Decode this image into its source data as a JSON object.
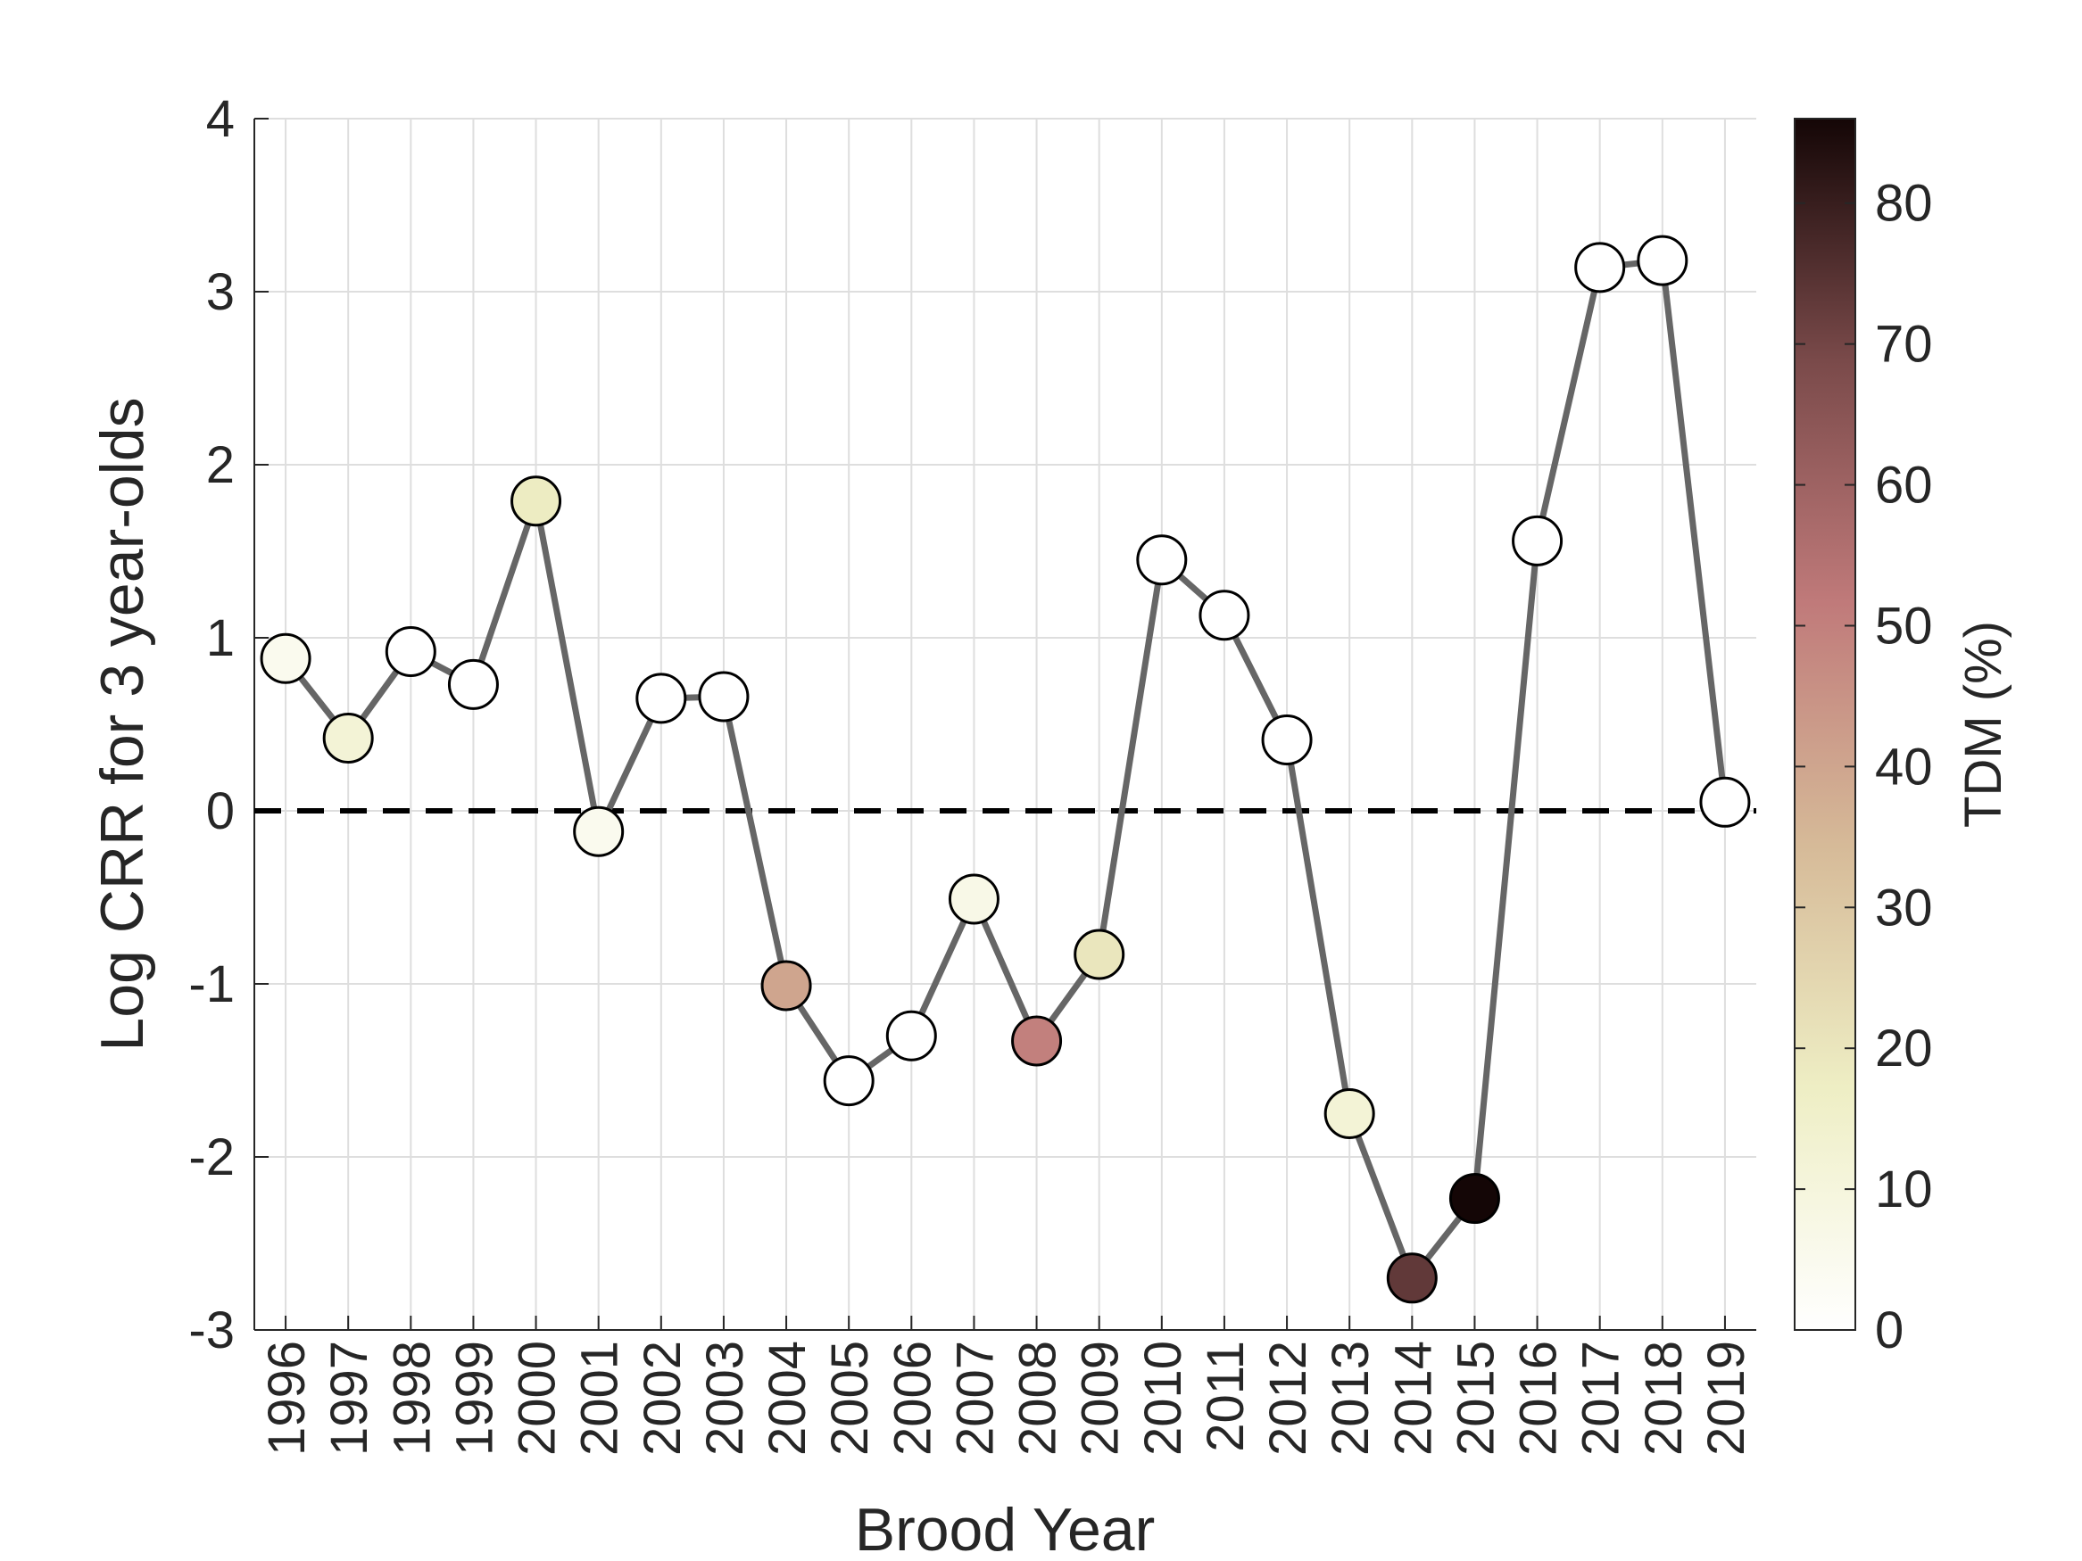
{
  "chart_data": {
    "type": "scatter",
    "xlabel": "Brood Year",
    "ylabel": "Log CRR for 3 year-olds",
    "ylim": [
      -3,
      4
    ],
    "yticks": [
      4,
      3,
      2,
      1,
      0,
      -1,
      -2,
      -3
    ],
    "grid": true,
    "reference_line": {
      "y": 0,
      "style": "dashed"
    },
    "categories": [
      "1996",
      "1997",
      "1998",
      "1999",
      "2000",
      "2001",
      "2002",
      "2003",
      "2004",
      "2005",
      "2006",
      "2007",
      "2008",
      "2009",
      "2010",
      "2011",
      "2012",
      "2013",
      "2014",
      "2015",
      "2016",
      "2017",
      "2018",
      "2019"
    ],
    "values": [
      0.88,
      0.42,
      0.92,
      0.73,
      1.79,
      -0.12,
      0.65,
      0.66,
      -1.01,
      -1.56,
      -1.3,
      -0.51,
      -1.33,
      -0.83,
      1.45,
      1.13,
      0.41,
      -1.75,
      -2.7,
      -2.24,
      1.56,
      3.14,
      3.18,
      0.05
    ],
    "tdm": [
      5,
      12,
      0,
      0,
      18,
      5,
      0,
      0,
      40,
      0,
      0,
      7,
      50,
      20,
      0,
      0,
      0,
      12,
      73,
      86,
      0,
      0,
      0,
      0
    ],
    "colorbar": {
      "label": "TDM (%)",
      "range": [
        0,
        86
      ],
      "ticks": [
        80,
        70,
        60,
        50,
        40,
        30,
        20,
        10,
        0
      ],
      "stops": [
        "#ffffff",
        "#eeeec4",
        "#d6ba98",
        "#c07a7a",
        "#7a4a4a",
        "#140606"
      ]
    },
    "line_color": "#666666"
  }
}
